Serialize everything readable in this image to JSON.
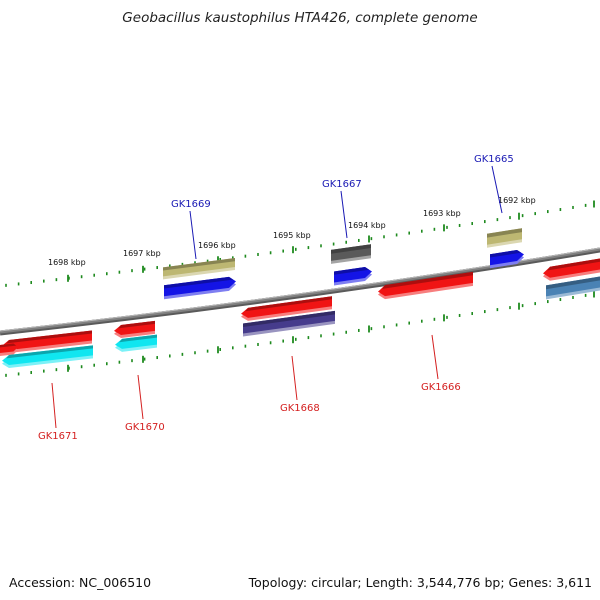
{
  "title": "Geobacillus kaustophilus HTA426, complete genome",
  "footer": {
    "accession": "Accession: NC_006510",
    "summary": "Topology: circular; Length: 3,544,776 bp; Genes: 3,611"
  },
  "scale_labels": [
    {
      "text": "1698 kbp"
    },
    {
      "text": "1697 kbp"
    },
    {
      "text": "1696 kbp"
    },
    {
      "text": "1695 kbp"
    },
    {
      "text": "1694 kbp"
    },
    {
      "text": "1693 kbp"
    },
    {
      "text": "1692 kbp"
    }
  ],
  "genes": [
    {
      "id": "GK1671",
      "strand": "reverse"
    },
    {
      "id": "GK1670",
      "strand": "reverse"
    },
    {
      "id": "GK1669",
      "strand": "forward"
    },
    {
      "id": "GK1668",
      "strand": "reverse"
    },
    {
      "id": "GK1667",
      "strand": "forward"
    },
    {
      "id": "GK1666",
      "strand": "reverse"
    },
    {
      "id": "GK1665",
      "strand": "forward"
    }
  ],
  "colors": {
    "backbone": "#808080",
    "ruler": "#1f8a1f",
    "forward_label": "#1a1ab4",
    "reverse_label": "#d42020",
    "gene_red": "#f01414",
    "gene_blue": "#1414e6",
    "gene_khaki": "#bdb772",
    "gene_cyan": "#10e6f0",
    "gene_purple": "#463c8c",
    "gene_gray": "#5a5a5a",
    "gene_steel": "#4a82b4"
  }
}
